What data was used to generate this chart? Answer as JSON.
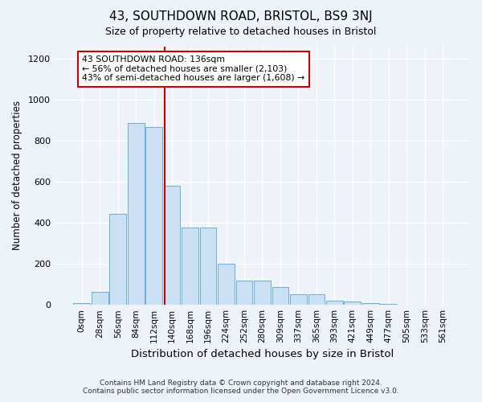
{
  "title": "43, SOUTHDOWN ROAD, BRISTOL, BS9 3NJ",
  "subtitle": "Size of property relative to detached houses in Bristol",
  "xlabel": "Distribution of detached houses by size in Bristol",
  "ylabel": "Number of detached properties",
  "bar_labels": [
    "0sqm",
    "28sqm",
    "56sqm",
    "84sqm",
    "112sqm",
    "140sqm",
    "168sqm",
    "196sqm",
    "224sqm",
    "252sqm",
    "280sqm",
    "309sqm",
    "337sqm",
    "365sqm",
    "393sqm",
    "421sqm",
    "449sqm",
    "477sqm",
    "505sqm",
    "533sqm",
    "561sqm"
  ],
  "bar_heights": [
    8,
    65,
    445,
    885,
    865,
    580,
    375,
    375,
    200,
    118,
    118,
    88,
    50,
    50,
    20,
    15,
    8,
    3,
    1,
    0,
    0
  ],
  "bar_color": "#cce0f5",
  "bar_edge_color": "#6baed6",
  "ylim": [
    0,
    1260
  ],
  "yticks": [
    0,
    200,
    400,
    600,
    800,
    1000,
    1200
  ],
  "vline_x": 4.575,
  "vline_color": "#cc0000",
  "annotation_title": "43 SOUTHDOWN ROAD: 136sqm",
  "annotation_line1": "← 56% of detached houses are smaller (2,103)",
  "annotation_line2": "43% of semi-detached houses are larger (1,608) →",
  "annotation_box_color": "#ffffff",
  "annotation_box_edge": "#cc0000",
  "footer1": "Contains HM Land Registry data © Crown copyright and database right 2024.",
  "footer2": "Contains public sector information licensed under the Open Government Licence v3.0.",
  "bg_color": "#eef2f9",
  "plot_bg_color": "#eef2f9"
}
